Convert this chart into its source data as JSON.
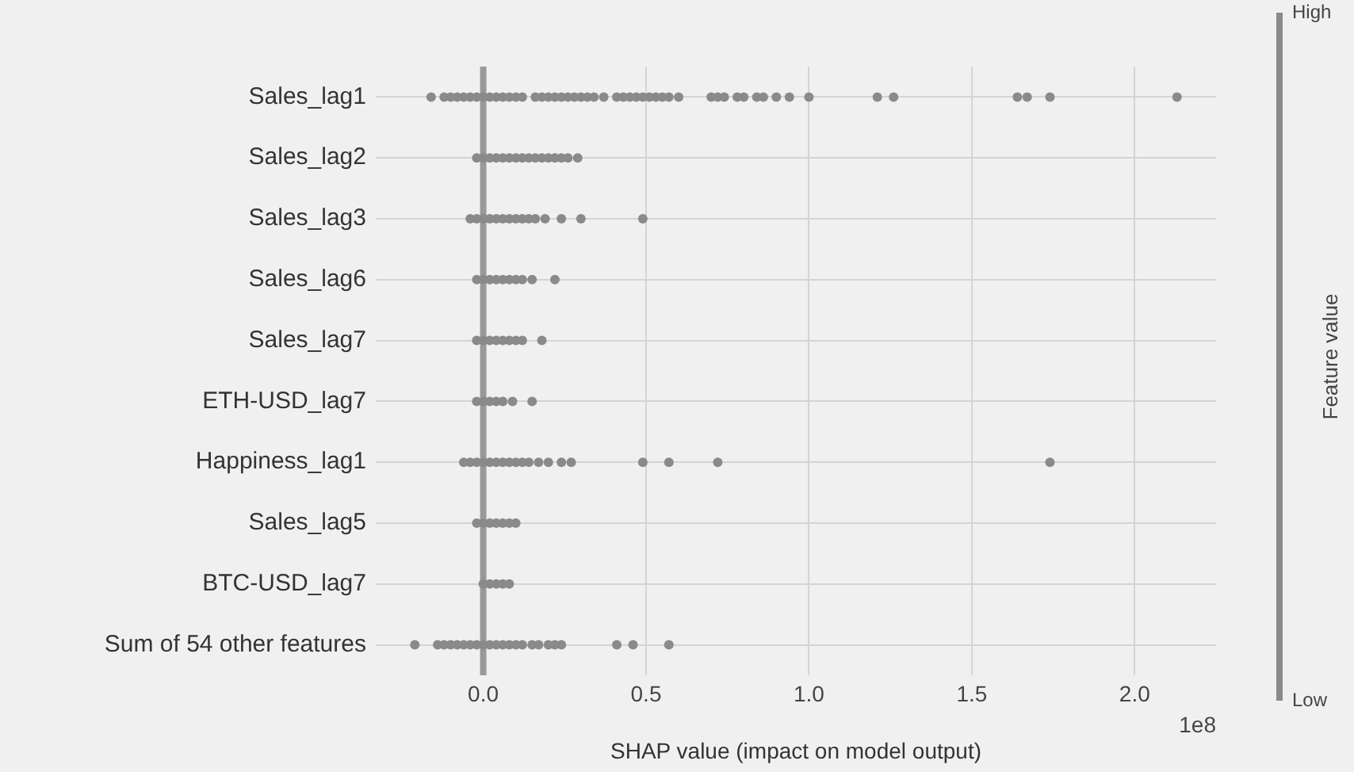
{
  "chart_data": {
    "type": "scatter",
    "orientation": "horizontal",
    "xlabel": "SHAP value (impact on model output)",
    "clabel": "Feature value",
    "categories": [
      "Sales_lag1",
      "Sales_lag2",
      "Sales_lag3",
      "Sales_lag6",
      "Sales_lag7",
      "ETH-USD_lag7",
      "Happiness_lag1",
      "Sales_lag5",
      "BTC-USD_lag7",
      "Sum of 54 other features"
    ],
    "series": [
      {
        "color": "#8a8a8a",
        "values": [
          -0.16,
          -0.02,
          -0.04,
          -0.02,
          -0.02,
          -0.02,
          -0.06,
          -0.02,
          0,
          -0.21
        ]
      },
      {
        "color": "#8a8a8a",
        "values": [
          -0.12,
          0,
          -0.02,
          0,
          0,
          0,
          -0.04,
          0,
          0.02,
          -0.14
        ]
      },
      {
        "color": "#8a8a8a",
        "values": [
          -0.1,
          0.02,
          0,
          0.02,
          0.02,
          0.02,
          -0.02,
          0.02,
          0.04,
          -0.12
        ]
      },
      {
        "color": "#8a8a8a",
        "values": [
          -0.08,
          0.04,
          0.02,
          0.04,
          0.04,
          0.04,
          0,
          0.04,
          0.06,
          -0.1
        ]
      },
      {
        "color": "#8a8a8a",
        "values": [
          -0.06,
          0.06,
          0.04,
          0.06,
          0.06,
          0.06,
          0.02,
          0.06,
          0.08,
          -0.08
        ]
      },
      {
        "color": "#8a8a8a",
        "values": [
          -0.04,
          0.08,
          0.06,
          0.08,
          0.08,
          0.09,
          0.04,
          0.08,
          null,
          -0.06
        ]
      },
      {
        "color": "#8a8a8a",
        "values": [
          -0.02,
          0.1,
          0.08,
          0.1,
          0.1,
          0.15,
          0.06,
          0.1,
          null,
          -0.04
        ]
      },
      {
        "color": "#8a8a8a",
        "values": [
          0,
          0.12,
          0.1,
          0.12,
          0.12,
          null,
          0.08,
          null,
          null,
          -0.02
        ]
      },
      {
        "color": "#8a8a8a",
        "values": [
          0.02,
          0.14,
          0.12,
          0.15,
          0.18,
          null,
          0.1,
          null,
          null,
          0
        ]
      },
      {
        "color": "#8a8a8a",
        "values": [
          0.04,
          0.16,
          0.14,
          0.22,
          null,
          null,
          0.12,
          null,
          null,
          0.02
        ]
      },
      {
        "color": "#8a8a8a",
        "values": [
          0.06,
          0.18,
          0.16,
          null,
          null,
          null,
          0.14,
          null,
          null,
          0.04
        ]
      },
      {
        "color": "#8a8a8a",
        "values": [
          0.08,
          0.2,
          0.19,
          null,
          null,
          null,
          0.17,
          null,
          null,
          0.06
        ]
      },
      {
        "color": "#8a8a8a",
        "values": [
          0.1,
          0.22,
          0.24,
          null,
          null,
          null,
          0.2,
          null,
          null,
          0.08
        ]
      },
      {
        "color": "#8a8a8a",
        "values": [
          0.12,
          0.24,
          0.3,
          null,
          null,
          null,
          0.24,
          null,
          null,
          0.1
        ]
      },
      {
        "color": "#8a8a8a",
        "values": [
          0.16,
          0.26,
          0.49,
          null,
          null,
          null,
          0.27,
          null,
          null,
          0.12
        ]
      },
      {
        "color": "#8a8a8a",
        "values": [
          0.18,
          0.29,
          null,
          null,
          null,
          null,
          0.49,
          null,
          null,
          0.15
        ]
      },
      {
        "color": "#8a8a8a",
        "values": [
          0.2,
          null,
          null,
          null,
          null,
          null,
          0.57,
          null,
          null,
          0.17
        ]
      },
      {
        "color": "#8a8a8a",
        "values": [
          0.22,
          null,
          null,
          null,
          null,
          null,
          0.72,
          null,
          null,
          0.2
        ]
      },
      {
        "color": "#8a8a8a",
        "values": [
          0.24,
          null,
          null,
          null,
          null,
          null,
          1.74,
          null,
          null,
          0.22
        ]
      },
      {
        "color": "#8a8a8a",
        "values": [
          0.26,
          null,
          null,
          null,
          null,
          null,
          null,
          null,
          null,
          0.24
        ]
      },
      {
        "color": "#8a8a8a",
        "values": [
          0.28,
          null,
          null,
          null,
          null,
          null,
          null,
          null,
          null,
          0.41
        ]
      },
      {
        "color": "#8a8a8a",
        "values": [
          0.3,
          null,
          null,
          null,
          null,
          null,
          null,
          null,
          null,
          0.46
        ]
      },
      {
        "color": "#8a8a8a",
        "values": [
          0.32,
          null,
          null,
          null,
          null,
          null,
          null,
          null,
          null,
          0.57
        ]
      },
      {
        "color": "#8a8a8a",
        "values": [
          0.34,
          null,
          null,
          null,
          null,
          null,
          null,
          null,
          null,
          null
        ]
      },
      {
        "color": "#8a8a8a",
        "values": [
          0.37,
          null,
          null,
          null,
          null,
          null,
          null,
          null,
          null,
          null
        ]
      },
      {
        "color": "#8a8a8a",
        "values": [
          0.41,
          null,
          null,
          null,
          null,
          null,
          null,
          null,
          null,
          null
        ]
      },
      {
        "color": "#8a8a8a",
        "values": [
          0.43,
          null,
          null,
          null,
          null,
          null,
          null,
          null,
          null,
          null
        ]
      },
      {
        "color": "#8a8a8a",
        "values": [
          0.45,
          null,
          null,
          null,
          null,
          null,
          null,
          null,
          null,
          null
        ]
      },
      {
        "color": "#8a8a8a",
        "values": [
          0.47,
          null,
          null,
          null,
          null,
          null,
          null,
          null,
          null,
          null
        ]
      },
      {
        "color": "#8a8a8a",
        "values": [
          0.49,
          null,
          null,
          null,
          null,
          null,
          null,
          null,
          null,
          null
        ]
      },
      {
        "color": "#8a8a8a",
        "values": [
          0.51,
          null,
          null,
          null,
          null,
          null,
          null,
          null,
          null,
          null
        ]
      },
      {
        "color": "#8a8a8a",
        "values": [
          0.53,
          null,
          null,
          null,
          null,
          null,
          null,
          null,
          null,
          null
        ]
      },
      {
        "color": "#8a8a8a",
        "values": [
          0.55,
          null,
          null,
          null,
          null,
          null,
          null,
          null,
          null,
          null
        ]
      },
      {
        "color": "#8a8a8a",
        "values": [
          0.57,
          null,
          null,
          null,
          null,
          null,
          null,
          null,
          null,
          null
        ]
      },
      {
        "color": "#8a8a8a",
        "values": [
          0.6,
          null,
          null,
          null,
          null,
          null,
          null,
          null,
          null,
          null
        ]
      },
      {
        "color": "#8a8a8a",
        "values": [
          0.7,
          null,
          null,
          null,
          null,
          null,
          null,
          null,
          null,
          null
        ]
      },
      {
        "color": "#8a8a8a",
        "values": [
          0.72,
          null,
          null,
          null,
          null,
          null,
          null,
          null,
          null,
          null
        ]
      },
      {
        "color": "#8a8a8a",
        "values": [
          0.74,
          null,
          null,
          null,
          null,
          null,
          null,
          null,
          null,
          null
        ]
      },
      {
        "color": "#8a8a8a",
        "values": [
          0.78,
          null,
          null,
          null,
          null,
          null,
          null,
          null,
          null,
          null
        ]
      },
      {
        "color": "#8a8a8a",
        "values": [
          0.8,
          null,
          null,
          null,
          null,
          null,
          null,
          null,
          null,
          null
        ]
      },
      {
        "color": "#8a8a8a",
        "values": [
          0.84,
          null,
          null,
          null,
          null,
          null,
          null,
          null,
          null,
          null
        ]
      },
      {
        "color": "#8a8a8a",
        "values": [
          0.86,
          null,
          null,
          null,
          null,
          null,
          null,
          null,
          null,
          null
        ]
      },
      {
        "color": "#8a8a8a",
        "values": [
          0.9,
          null,
          null,
          null,
          null,
          null,
          null,
          null,
          null,
          null
        ]
      },
      {
        "color": "#8a8a8a",
        "values": [
          0.94,
          null,
          null,
          null,
          null,
          null,
          null,
          null,
          null,
          null
        ]
      },
      {
        "color": "#8a8a8a",
        "values": [
          1.0,
          null,
          null,
          null,
          null,
          null,
          null,
          null,
          null,
          null
        ]
      },
      {
        "color": "#8a8a8a",
        "values": [
          1.21,
          null,
          null,
          null,
          null,
          null,
          null,
          null,
          null,
          null
        ]
      },
      {
        "color": "#8a8a8a",
        "values": [
          1.26,
          null,
          null,
          null,
          null,
          null,
          null,
          null,
          null,
          null
        ]
      },
      {
        "color": "#8a8a8a",
        "values": [
          1.64,
          null,
          null,
          null,
          null,
          null,
          null,
          null,
          null,
          null
        ]
      },
      {
        "color": "#8a8a8a",
        "values": [
          1.67,
          null,
          null,
          null,
          null,
          null,
          null,
          null,
          null,
          null
        ]
      },
      {
        "color": "#8a8a8a",
        "values": [
          1.74,
          null,
          null,
          null,
          null,
          null,
          null,
          null,
          null,
          null
        ]
      },
      {
        "color": "#8a8a8a",
        "values": [
          2.13,
          null,
          null,
          null,
          null,
          null,
          null,
          null,
          null,
          null
        ]
      }
    ],
    "xlim": [
      -0.33,
      2.25
    ],
    "xticks": [
      {
        "value": 0,
        "label": "0.0"
      },
      {
        "value": 0.5,
        "label": "0.5"
      },
      {
        "value": 1,
        "label": "1.0"
      },
      {
        "value": 1.5,
        "label": "1.5"
      },
      {
        "value": 2,
        "label": "2.0"
      }
    ],
    "ref_lines": [
      {
        "axis": "x",
        "value": 0,
        "color": "#999999"
      }
    ],
    "annotations": [
      "1e8",
      "High",
      "Low"
    ],
    "grid": true,
    "marker": "circle",
    "legend": false
  }
}
